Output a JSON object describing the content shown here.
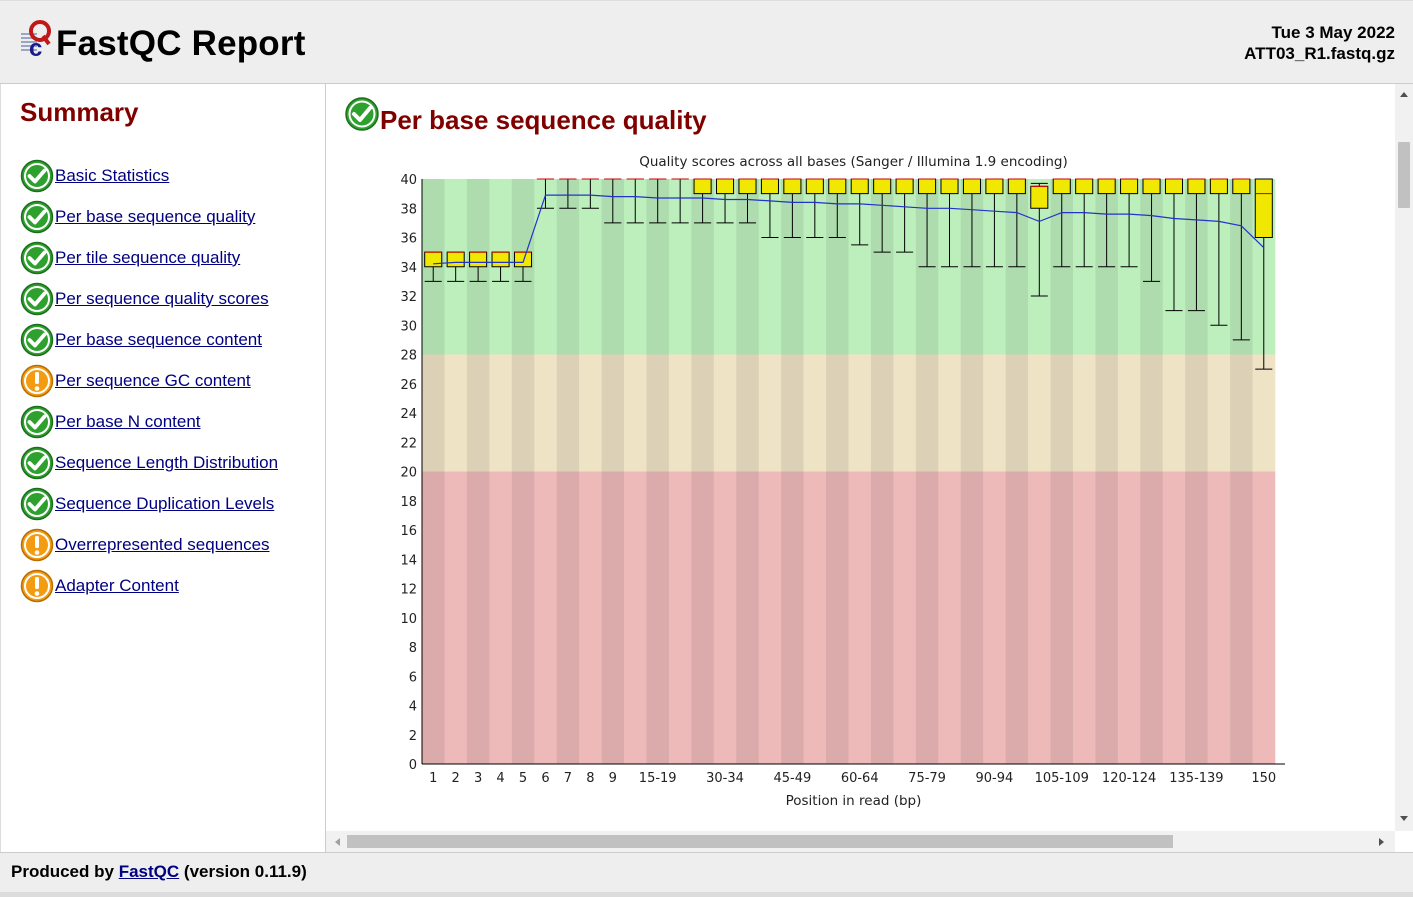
{
  "header": {
    "title": "FastQC Report",
    "date": "Tue 3 May 2022",
    "filename": "ATT03_R1.fastq.gz"
  },
  "summary": {
    "heading": "Summary",
    "items": [
      {
        "label": "Basic Statistics",
        "status": "pass"
      },
      {
        "label": "Per base sequence quality",
        "status": "pass"
      },
      {
        "label": "Per tile sequence quality",
        "status": "pass"
      },
      {
        "label": "Per sequence quality scores",
        "status": "pass"
      },
      {
        "label": "Per base sequence content",
        "status": "pass"
      },
      {
        "label": "Per sequence GC content",
        "status": "warn"
      },
      {
        "label": "Per base N content",
        "status": "pass"
      },
      {
        "label": "Sequence Length Distribution",
        "status": "pass"
      },
      {
        "label": "Sequence Duplication Levels",
        "status": "pass"
      },
      {
        "label": "Overrepresented sequences",
        "status": "warn"
      },
      {
        "label": "Adapter Content",
        "status": "warn"
      }
    ]
  },
  "module": {
    "title": "Per base sequence quality",
    "status": "pass"
  },
  "footer": {
    "prefix": "Produced by",
    "link": "FastQC",
    "version": "(version 0.11.9)"
  },
  "colors": {
    "pass": "#2ea02e",
    "warn": "#f39c12",
    "heading": "#800000",
    "link": "#000080",
    "zone_good": "#b7e8b7",
    "zone_warn": "#e8dcc0",
    "zone_bad": "#e6b4b4",
    "box_fill": "#f0e800",
    "mean_line": "#2233cc",
    "median": "#cc0000"
  },
  "chart_data": {
    "type": "box",
    "title": "Quality scores across all bases (Sanger / Illumina 1.9 encoding)",
    "xlabel": "Position in read (bp)",
    "ylabel": "",
    "ylim": [
      0,
      40
    ],
    "yticks": [
      0,
      2,
      4,
      6,
      8,
      10,
      12,
      14,
      16,
      18,
      20,
      22,
      24,
      26,
      28,
      30,
      32,
      34,
      36,
      38,
      40
    ],
    "zones": [
      {
        "from": 28,
        "to": 40,
        "label": "good"
      },
      {
        "from": 20,
        "to": 28,
        "label": "acceptable"
      },
      {
        "from": 0,
        "to": 20,
        "label": "poor"
      }
    ],
    "categories": [
      "1",
      "2",
      "3",
      "4",
      "5",
      "6",
      "7",
      "8",
      "9",
      "10-14",
      "15-19",
      "20-24",
      "25-29",
      "30-34",
      "35-39",
      "40-44",
      "45-49",
      "50-54",
      "55-59",
      "60-64",
      "65-69",
      "70-74",
      "75-79",
      "80-84",
      "85-89",
      "90-94",
      "95-99",
      "100-104",
      "105-109",
      "110-114",
      "115-119",
      "120-124",
      "125-129",
      "130-134",
      "135-139",
      "140-144",
      "145-149",
      "150"
    ],
    "xtick_labels": [
      "1",
      "2",
      "3",
      "4",
      "5",
      "6",
      "7",
      "8",
      "9",
      "",
      "15-19",
      "",
      "",
      "30-34",
      "",
      "",
      "45-49",
      "",
      "",
      "60-64",
      "",
      "",
      "75-79",
      "",
      "",
      "90-94",
      "",
      "",
      "105-109",
      "",
      "",
      "120-124",
      "",
      "",
      "135-139",
      "",
      "",
      "150"
    ],
    "series": [
      {
        "name": "mean",
        "values": [
          34.2,
          34.3,
          34.3,
          34.3,
          34.3,
          38.9,
          38.9,
          38.9,
          38.8,
          38.8,
          38.7,
          38.7,
          38.7,
          38.6,
          38.6,
          38.5,
          38.4,
          38.4,
          38.3,
          38.3,
          38.2,
          38.1,
          38.0,
          38.0,
          37.9,
          37.8,
          37.7,
          37.1,
          37.7,
          37.7,
          37.6,
          37.6,
          37.5,
          37.3,
          37.2,
          37.1,
          36.8,
          35.3
        ]
      }
    ],
    "boxes": [
      {
        "lw": 33,
        "q1": 34,
        "med": 35,
        "q3": 35,
        "uw": 35
      },
      {
        "lw": 33,
        "q1": 34,
        "med": 35,
        "q3": 35,
        "uw": 35
      },
      {
        "lw": 33,
        "q1": 34,
        "med": 35,
        "q3": 35,
        "uw": 35
      },
      {
        "lw": 33,
        "q1": 34,
        "med": 35,
        "q3": 35,
        "uw": 35
      },
      {
        "lw": 33,
        "q1": 34,
        "med": 35,
        "q3": 35,
        "uw": 35
      },
      {
        "lw": 38,
        "q1": 40,
        "med": 40,
        "q3": 40,
        "uw": 40
      },
      {
        "lw": 38,
        "q1": 40,
        "med": 40,
        "q3": 40,
        "uw": 40
      },
      {
        "lw": 38,
        "q1": 40,
        "med": 40,
        "q3": 40,
        "uw": 40
      },
      {
        "lw": 37,
        "q1": 40,
        "med": 40,
        "q3": 40,
        "uw": 40
      },
      {
        "lw": 37,
        "q1": 40,
        "med": 40,
        "q3": 40,
        "uw": 40
      },
      {
        "lw": 37,
        "q1": 40,
        "med": 40,
        "q3": 40,
        "uw": 40
      },
      {
        "lw": 37,
        "q1": 40,
        "med": 40,
        "q3": 40,
        "uw": 40
      },
      {
        "lw": 37,
        "q1": 39,
        "med": 40,
        "q3": 40,
        "uw": 40
      },
      {
        "lw": 37,
        "q1": 39,
        "med": 40,
        "q3": 40,
        "uw": 40
      },
      {
        "lw": 37,
        "q1": 39,
        "med": 40,
        "q3": 40,
        "uw": 40
      },
      {
        "lw": 36,
        "q1": 39,
        "med": 40,
        "q3": 40,
        "uw": 40
      },
      {
        "lw": 36,
        "q1": 39,
        "med": 40,
        "q3": 40,
        "uw": 40
      },
      {
        "lw": 36,
        "q1": 39,
        "med": 40,
        "q3": 40,
        "uw": 40
      },
      {
        "lw": 36,
        "q1": 39,
        "med": 40,
        "q3": 40,
        "uw": 40
      },
      {
        "lw": 35.5,
        "q1": 39,
        "med": 40,
        "q3": 40,
        "uw": 40
      },
      {
        "lw": 35,
        "q1": 39,
        "med": 40,
        "q3": 40,
        "uw": 40
      },
      {
        "lw": 35,
        "q1": 39,
        "med": 40,
        "q3": 40,
        "uw": 40
      },
      {
        "lw": 34,
        "q1": 39,
        "med": 40,
        "q3": 40,
        "uw": 40
      },
      {
        "lw": 34,
        "q1": 39,
        "med": 40,
        "q3": 40,
        "uw": 40
      },
      {
        "lw": 34,
        "q1": 39,
        "med": 40,
        "q3": 40,
        "uw": 40
      },
      {
        "lw": 34,
        "q1": 39,
        "med": 40,
        "q3": 40,
        "uw": 40
      },
      {
        "lw": 34,
        "q1": 39,
        "med": 40,
        "q3": 40,
        "uw": 40
      },
      {
        "lw": 32,
        "q1": 38,
        "med": 39.5,
        "q3": 39.5,
        "uw": 39.7
      },
      {
        "lw": 34,
        "q1": 39,
        "med": 40,
        "q3": 40,
        "uw": 40
      },
      {
        "lw": 34,
        "q1": 39,
        "med": 40,
        "q3": 40,
        "uw": 40
      },
      {
        "lw": 34,
        "q1": 39,
        "med": 40,
        "q3": 40,
        "uw": 40
      },
      {
        "lw": 34,
        "q1": 39,
        "med": 40,
        "q3": 40,
        "uw": 40
      },
      {
        "lw": 33,
        "q1": 39,
        "med": 40,
        "q3": 40,
        "uw": 40
      },
      {
        "lw": 31,
        "q1": 39,
        "med": 40,
        "q3": 40,
        "uw": 40
      },
      {
        "lw": 31,
        "q1": 39,
        "med": 40,
        "q3": 40,
        "uw": 40
      },
      {
        "lw": 30,
        "q1": 39,
        "med": 40,
        "q3": 40,
        "uw": 40
      },
      {
        "lw": 29,
        "q1": 39,
        "med": 40,
        "q3": 40,
        "uw": 40
      },
      {
        "lw": 27,
        "q1": 36,
        "med": 39,
        "q3": 40,
        "uw": 40
      }
    ],
    "grid": false,
    "legend": "none"
  }
}
